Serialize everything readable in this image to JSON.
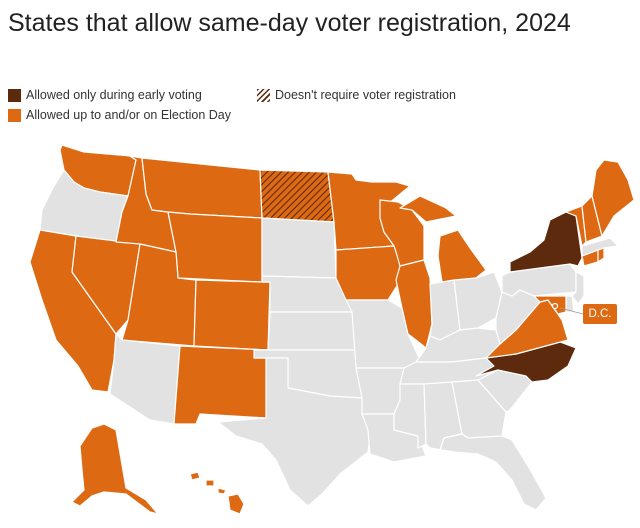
{
  "title": "States that allow same-day voter registration, 2024",
  "legend": [
    {
      "key": "early",
      "label": "Allowed only during early voting",
      "color": "#5e2a0e"
    },
    {
      "key": "eday",
      "label": "Allowed up to and/or on Election Day",
      "color": "#dd6a12"
    },
    {
      "key": "none",
      "label": "Doesn't require voter registration",
      "pattern": "hatch",
      "color": "#5e2a0e"
    }
  ],
  "colors": {
    "early": "#5e2a0e",
    "eday": "#dd6a12",
    "none": "#dd6a12",
    "other": "#e2e2e2"
  },
  "states": {
    "WA": "eday",
    "OR": "other",
    "CA": "eday",
    "NV": "eday",
    "ID": "eday",
    "MT": "eday",
    "WY": "eday",
    "UT": "eday",
    "AZ": "other",
    "CO": "eday",
    "NM": "eday",
    "ND": "none",
    "SD": "other",
    "NE": "other",
    "KS": "other",
    "OK": "other",
    "TX": "other",
    "MN": "eday",
    "IA": "eday",
    "MO": "other",
    "AR": "other",
    "LA": "other",
    "WI": "eday",
    "IL": "eday",
    "MI": "eday",
    "IN": "other",
    "OH": "other",
    "KY": "other",
    "TN": "other",
    "MS": "other",
    "AL": "other",
    "GA": "other",
    "FL": "other",
    "SC": "other",
    "NC": "early",
    "VA": "eday",
    "WV": "other",
    "PA": "other",
    "NY": "early",
    "VT": "eday",
    "NH": "eday",
    "ME": "eday",
    "MA": "other",
    "CT": "eday",
    "RI": "eday",
    "NJ": "other",
    "DE": "other",
    "MD": "eday",
    "AK": "eday",
    "HI": "eday",
    "DC": "eday"
  },
  "dc_label": "D.C."
}
